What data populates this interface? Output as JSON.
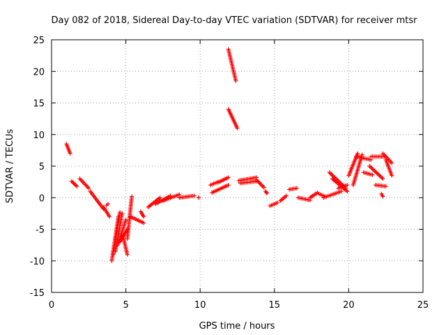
{
  "chart_data": {
    "type": "scatter",
    "title": "Day 082 of 2018, Sidereal Day-to-day VTEC variation (SDTVAR) for receiver mtsr",
    "xlabel": "GPS time / hours",
    "ylabel": "SDTVAR / TECUs",
    "xlim": [
      0,
      25
    ],
    "ylim": [
      -15,
      25
    ],
    "xticks": [
      0,
      5,
      10,
      15,
      20,
      25
    ],
    "yticks": [
      -15,
      -10,
      -5,
      0,
      5,
      10,
      15,
      20,
      25
    ],
    "grid": true,
    "marker": "+",
    "color": "#ff0000",
    "segments": [
      {
        "x0": 1.0,
        "x1": 1.25,
        "y0": 8.5,
        "y1": 7.0
      },
      {
        "x0": 1.35,
        "x1": 1.7,
        "y0": 2.6,
        "y1": 1.8
      },
      {
        "x0": 1.9,
        "x1": 2.5,
        "y0": 3.0,
        "y1": 1.5
      },
      {
        "x0": 2.6,
        "x1": 3.5,
        "y0": 1.0,
        "y1": -1.8
      },
      {
        "x0": 3.5,
        "x1": 3.9,
        "y0": -1.5,
        "y1": -3.0
      },
      {
        "x0": 3.7,
        "x1": 3.8,
        "y0": -1.2,
        "y1": -1.0
      },
      {
        "x0": 4.05,
        "x1": 4.5,
        "y0": -10.0,
        "y1": -3.0
      },
      {
        "x0": 4.15,
        "x1": 4.6,
        "y0": -9.0,
        "y1": -2.3
      },
      {
        "x0": 4.3,
        "x1": 4.75,
        "y0": -8.5,
        "y1": -2.5
      },
      {
        "x0": 4.45,
        "x1": 5.0,
        "y0": -7.5,
        "y1": -3.5
      },
      {
        "x0": 4.6,
        "x1": 5.1,
        "y0": -7.0,
        "y1": -5.0
      },
      {
        "x0": 4.8,
        "x1": 5.1,
        "y0": -6.0,
        "y1": -9.0
      },
      {
        "x0": 5.1,
        "x1": 5.4,
        "y0": -6.5,
        "y1": 0.2
      },
      {
        "x0": 5.3,
        "x1": 6.2,
        "y0": -3.0,
        "y1": -4.0
      },
      {
        "x0": 6.0,
        "x1": 6.2,
        "y0": -2.2,
        "y1": -3.0
      },
      {
        "x0": 6.5,
        "x1": 7.3,
        "y0": -1.5,
        "y1": 0.0
      },
      {
        "x0": 7.0,
        "x1": 8.0,
        "y0": -1.0,
        "y1": 0.3
      },
      {
        "x0": 7.5,
        "x1": 8.6,
        "y0": -0.5,
        "y1": 0.5
      },
      {
        "x0": 8.6,
        "x1": 9.6,
        "y0": 0.0,
        "y1": 0.3
      },
      {
        "x0": 9.9,
        "x1": 9.9,
        "y0": 0.0,
        "y1": 0.0
      },
      {
        "x0": 10.7,
        "x1": 11.2,
        "y0": 2.0,
        "y1": 2.5
      },
      {
        "x0": 11.2,
        "x1": 11.9,
        "y0": 2.4,
        "y1": 3.2
      },
      {
        "x0": 10.8,
        "x1": 11.9,
        "y0": 0.8,
        "y1": 2.0
      },
      {
        "x0": 11.9,
        "x1": 12.4,
        "y0": 23.5,
        "y1": 18.5
      },
      {
        "x0": 11.9,
        "x1": 12.5,
        "y0": 14.0,
        "y1": 11.0
      },
      {
        "x0": 12.6,
        "x1": 13.8,
        "y0": 2.7,
        "y1": 3.2
      },
      {
        "x0": 12.7,
        "x1": 13.8,
        "y0": 2.3,
        "y1": 2.6
      },
      {
        "x0": 13.8,
        "x1": 14.3,
        "y0": 2.8,
        "y1": 1.6
      },
      {
        "x0": 14.4,
        "x1": 14.5,
        "y0": 1.0,
        "y1": 0.7
      },
      {
        "x0": 14.7,
        "x1": 15.2,
        "y0": -1.3,
        "y1": -0.8
      },
      {
        "x0": 15.4,
        "x1": 15.8,
        "y0": -0.5,
        "y1": 0.3
      },
      {
        "x0": 16.0,
        "x1": 16.5,
        "y0": 1.3,
        "y1": 1.5
      },
      {
        "x0": 16.6,
        "x1": 17.4,
        "y0": 0.0,
        "y1": -0.4
      },
      {
        "x0": 17.4,
        "x1": 17.9,
        "y0": 0.0,
        "y1": 0.8
      },
      {
        "x0": 18.0,
        "x1": 18.4,
        "y0": 0.6,
        "y1": 0.2
      },
      {
        "x0": 18.3,
        "x1": 19.5,
        "y0": 0.0,
        "y1": 1.0
      },
      {
        "x0": 18.7,
        "x1": 19.8,
        "y0": 4.0,
        "y1": 1.5
      },
      {
        "x0": 18.9,
        "x1": 19.9,
        "y0": 3.0,
        "y1": 1.0
      },
      {
        "x0": 19.3,
        "x1": 19.9,
        "y0": 1.5,
        "y1": 2.0
      },
      {
        "x0": 20.0,
        "x1": 20.6,
        "y0": 3.5,
        "y1": 7.0
      },
      {
        "x0": 20.3,
        "x1": 20.9,
        "y0": 2.0,
        "y1": 6.8
      },
      {
        "x0": 20.5,
        "x1": 21.5,
        "y0": 6.5,
        "y1": 6.0
      },
      {
        "x0": 21.0,
        "x1": 21.6,
        "y0": 4.0,
        "y1": 3.6
      },
      {
        "x0": 21.4,
        "x1": 22.3,
        "y0": 5.0,
        "y1": 3.0
      },
      {
        "x0": 21.5,
        "x1": 22.4,
        "y0": 6.5,
        "y1": 6.5
      },
      {
        "x0": 21.8,
        "x1": 22.5,
        "y0": 2.0,
        "y1": 1.8
      },
      {
        "x0": 22.3,
        "x1": 22.9,
        "y0": 7.0,
        "y1": 5.5
      },
      {
        "x0": 22.5,
        "x1": 22.9,
        "y0": 6.0,
        "y1": 3.5
      },
      {
        "x0": 22.2,
        "x1": 22.3,
        "y0": 0.6,
        "y1": 0.2
      }
    ]
  }
}
